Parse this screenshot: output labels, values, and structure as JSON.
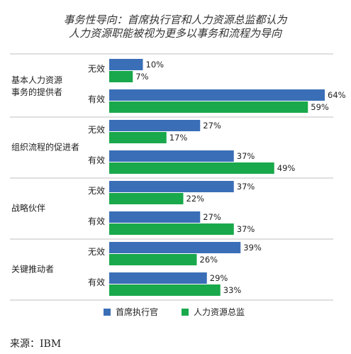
{
  "chart_data": {
    "type": "bar",
    "orientation": "horizontal",
    "title_lines": [
      "事务性导向：首席执行官和人力资源总监都认为",
      "人力资源职能被视为更多以事务和流程为导向"
    ],
    "categories": [
      "基本人力资源事务的提供者",
      "组织流程的促进者",
      "战略伙伴",
      "关键推动者"
    ],
    "category_label_lines": [
      [
        "基本人力资源",
        "事务的提供者"
      ],
      [
        "组织流程的促进者"
      ],
      [
        "战略伙伴"
      ],
      [
        "关键推动者"
      ]
    ],
    "subgroups": [
      "无效",
      "有效"
    ],
    "series": [
      {
        "name": "首席执行官",
        "color": "#3a6fb7",
        "values": [
          [
            10,
            64
          ],
          [
            27,
            37
          ],
          [
            37,
            27
          ],
          [
            39,
            29
          ]
        ]
      },
      {
        "name": "人力资源总监",
        "color": "#19a84b",
        "values": [
          [
            7,
            59
          ],
          [
            17,
            49
          ],
          [
            22,
            37
          ],
          [
            26,
            33
          ]
        ]
      }
    ],
    "unit": "%",
    "xlim": [
      0,
      70
    ],
    "grid": false,
    "legend_position": "bottom"
  },
  "source": "来源：IBM",
  "colors": {
    "separator": "#bfbfbf"
  }
}
